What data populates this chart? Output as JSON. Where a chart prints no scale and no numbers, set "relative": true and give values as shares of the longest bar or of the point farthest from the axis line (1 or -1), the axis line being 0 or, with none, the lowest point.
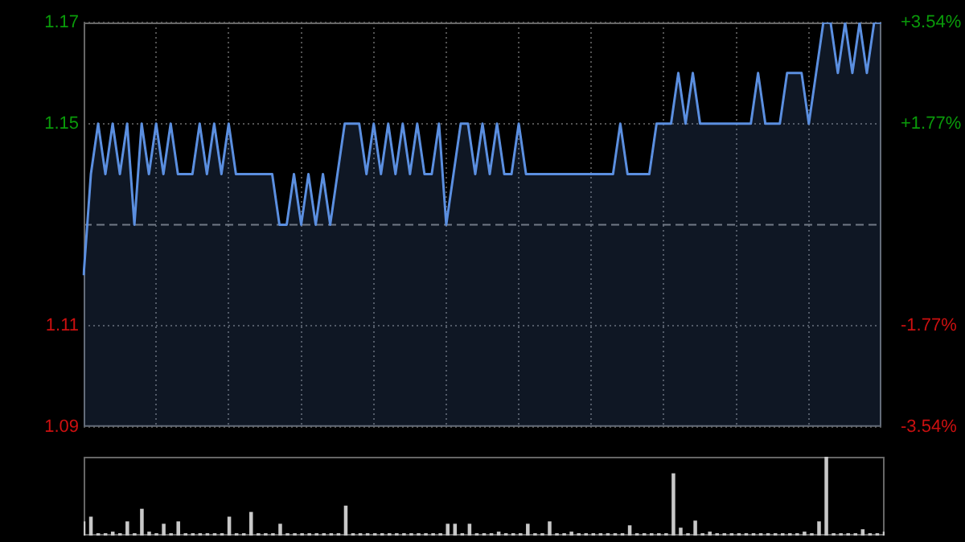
{
  "chart_data": [
    {
      "type": "area",
      "categories": [
        null,
        null,
        null,
        null,
        null,
        null,
        null,
        null,
        null,
        null,
        null,
        null,
        null,
        null,
        null,
        null,
        null,
        null,
        null,
        null,
        null,
        null,
        null,
        null,
        null,
        null,
        null,
        null,
        null,
        null,
        null,
        null,
        null,
        null,
        null,
        null,
        null,
        null,
        null,
        null,
        null,
        null,
        null,
        null,
        null,
        null,
        null,
        null,
        null,
        null,
        null,
        null,
        null,
        null,
        null,
        null,
        null,
        null,
        null,
        null,
        null,
        null,
        null,
        null,
        null,
        null,
        null,
        null,
        null,
        null,
        null,
        null,
        null,
        null,
        null,
        null,
        null,
        null,
        null,
        null,
        null,
        null,
        null,
        null,
        null,
        null,
        null,
        null,
        null,
        null,
        null,
        null,
        null,
        null,
        null,
        null,
        null,
        null,
        null,
        null,
        null,
        null,
        null,
        null,
        null,
        null,
        null,
        null,
        null,
        null,
        null
      ],
      "series": [
        {
          "color": "#5b8fe0",
          "values": [
            1.12,
            1.14,
            1.15,
            1.14,
            1.15,
            1.14,
            1.15,
            1.13,
            1.15,
            1.14,
            1.15,
            1.14,
            1.15,
            1.14,
            1.14,
            1.14,
            1.15,
            1.14,
            1.15,
            1.14,
            1.15,
            1.14,
            1.14,
            1.14,
            1.14,
            1.14,
            1.14,
            1.13,
            1.13,
            1.14,
            1.13,
            1.14,
            1.13,
            1.14,
            1.13,
            1.14,
            1.15,
            1.15,
            1.15,
            1.14,
            1.15,
            1.14,
            1.15,
            1.14,
            1.15,
            1.14,
            1.15,
            1.14,
            1.14,
            1.15,
            1.13,
            1.14,
            1.15,
            1.15,
            1.14,
            1.15,
            1.14,
            1.15,
            1.14,
            1.14,
            1.15,
            1.14,
            1.14,
            1.14,
            1.14,
            1.14,
            1.14,
            1.14,
            1.14,
            1.14,
            1.14,
            1.14,
            1.14,
            1.14,
            1.15,
            1.14,
            1.14,
            1.14,
            1.14,
            1.15,
            1.15,
            1.15,
            1.16,
            1.15,
            1.16,
            1.15,
            1.15,
            1.15,
            1.15,
            1.15,
            1.15,
            1.15,
            1.15,
            1.16,
            1.15,
            1.15,
            1.15,
            1.16,
            1.16,
            1.16,
            1.15,
            1.16,
            1.17,
            1.17,
            1.16,
            1.17,
            1.16,
            1.17,
            1.16,
            1.17,
            1.17
          ]
        }
      ],
      "ylim": [
        1.09,
        1.17
      ],
      "yticks": [
        1.09,
        1.11,
        1.15,
        1.17
      ],
      "y2lim": [
        -3.54,
        3.54
      ],
      "y2ticks": [
        {
          "value": -3.54,
          "label": "-3.54%"
        },
        {
          "value": -1.77,
          "label": "-1.77%"
        },
        {
          "value": 1.77,
          "label": "+1.77%"
        },
        {
          "value": 3.54,
          "label": "+3.54%"
        }
      ],
      "ref_lines": [
        {
          "axis": "y",
          "value": 1.13,
          "line_style": "dashed",
          "color": "#777777"
        }
      ],
      "grid": true,
      "legend": false,
      "tick_labels": "y",
      "marker": "none",
      "line_style": "solid"
    },
    {
      "type": "bar",
      "relative": true,
      "tick_labels": false,
      "legend": false,
      "grid": false,
      "categories": [
        null,
        null,
        null,
        null,
        null,
        null,
        null,
        null,
        null,
        null,
        null,
        null,
        null,
        null,
        null,
        null,
        null,
        null,
        null,
        null,
        null,
        null,
        null,
        null,
        null,
        null,
        null,
        null,
        null,
        null,
        null,
        null,
        null,
        null,
        null,
        null,
        null,
        null,
        null,
        null,
        null,
        null,
        null,
        null,
        null,
        null,
        null,
        null,
        null,
        null,
        null,
        null,
        null,
        null,
        null,
        null,
        null,
        null,
        null,
        null,
        null,
        null,
        null,
        null,
        null,
        null,
        null,
        null,
        null,
        null,
        null,
        null,
        null,
        null,
        null,
        null,
        null,
        null,
        null,
        null,
        null,
        null,
        null,
        null,
        null,
        null,
        null,
        null,
        null,
        null,
        null,
        null,
        null,
        null,
        null,
        null,
        null,
        null,
        null,
        null,
        null,
        null,
        null,
        null,
        null,
        null,
        null,
        null,
        null,
        null,
        null
      ],
      "color": "#c8c8c8",
      "values": [
        0.18,
        0.24,
        0.03,
        0.03,
        0.05,
        0.03,
        0.18,
        0.03,
        0.34,
        0.05,
        0.03,
        0.15,
        0.03,
        0.18,
        0.03,
        0.03,
        0.03,
        0.03,
        0.03,
        0.03,
        0.24,
        0.03,
        0.03,
        0.3,
        0.03,
        0.03,
        0.03,
        0.15,
        0.03,
        0.03,
        0.03,
        0.03,
        0.03,
        0.03,
        0.03,
        0.03,
        0.38,
        0.03,
        0.03,
        0.03,
        0.03,
        0.03,
        0.03,
        0.03,
        0.03,
        0.03,
        0.03,
        0.03,
        0.03,
        0.03,
        0.15,
        0.15,
        0.03,
        0.15,
        0.03,
        0.03,
        0.03,
        0.05,
        0.03,
        0.03,
        0.03,
        0.15,
        0.03,
        0.03,
        0.18,
        0.03,
        0.03,
        0.05,
        0.03,
        0.03,
        0.03,
        0.03,
        0.03,
        0.03,
        0.03,
        0.13,
        0.03,
        0.03,
        0.03,
        0.03,
        0.03,
        0.79,
        0.1,
        0.03,
        0.19,
        0.03,
        0.05,
        0.03,
        0.03,
        0.03,
        0.03,
        0.03,
        0.03,
        0.03,
        0.03,
        0.03,
        0.03,
        0.03,
        0.03,
        0.05,
        0.03,
        0.18,
        1,
        0.03,
        0.03,
        0.03,
        0.03,
        0.08,
        0.03,
        0.03,
        0.05
      ]
    }
  ]
}
